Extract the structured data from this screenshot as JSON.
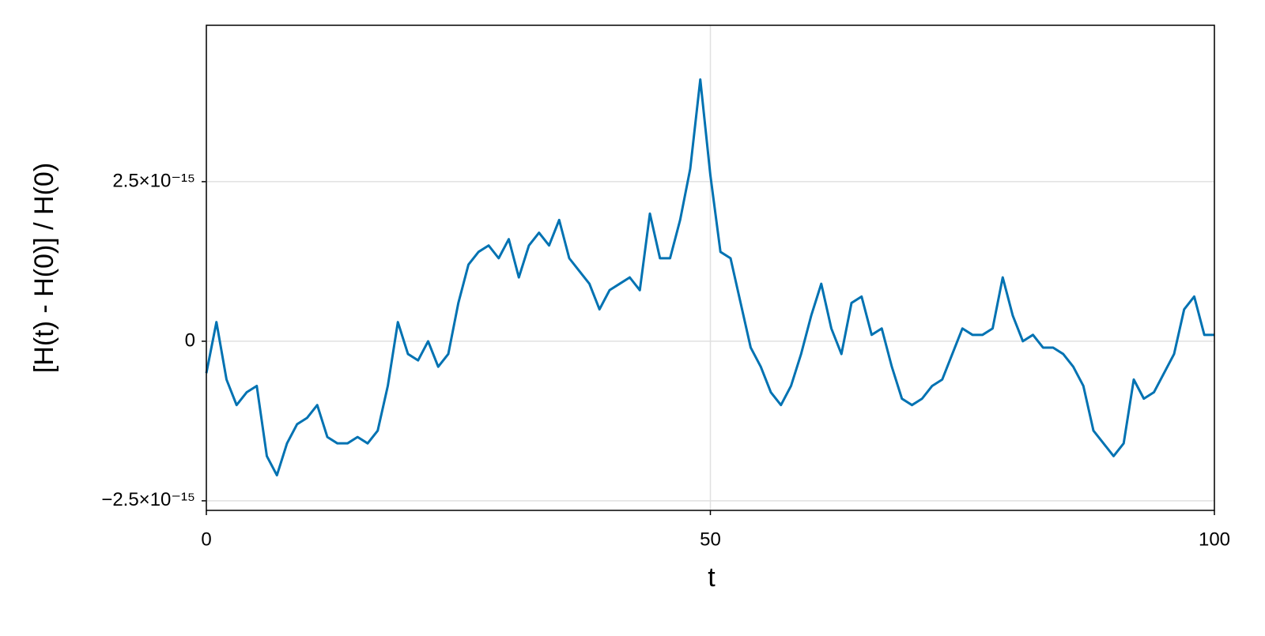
{
  "chart_data": {
    "type": "line",
    "x_label": "t",
    "y_label": "[H(t) - H(0)] / H(0)",
    "xlim": [
      0,
      100
    ],
    "xticks": [
      0,
      50,
      100
    ],
    "ylim": [
      -2.65e-15,
      4.95e-15
    ],
    "yticks": [
      {
        "value": -2.5e-15,
        "label": "−2.5×10⁻¹⁵"
      },
      0,
      {
        "value": 2.5e-15,
        "label": "2.5×10⁻¹⁵"
      }
    ],
    "grid": true,
    "x": [
      0,
      1,
      2,
      3,
      4,
      5,
      6,
      7,
      8,
      9,
      10,
      11,
      12,
      13,
      14,
      15,
      16,
      17,
      18,
      19,
      20,
      21,
      22,
      23,
      24,
      25,
      26,
      27,
      28,
      29,
      30,
      31,
      32,
      33,
      34,
      35,
      36,
      37,
      38,
      39,
      40,
      41,
      42,
      43,
      44,
      45,
      46,
      47,
      48,
      49,
      50,
      51,
      52,
      53,
      54,
      55,
      56,
      57,
      58,
      59,
      60,
      61,
      62,
      63,
      64,
      65,
      66,
      67,
      68,
      69,
      70,
      71,
      72,
      73,
      74,
      75,
      76,
      77,
      78,
      79,
      80,
      81,
      82,
      83,
      84,
      85,
      86,
      87,
      88,
      89,
      90,
      91,
      92,
      93,
      94,
      95,
      96,
      97,
      98,
      99,
      100
    ],
    "series": [
      {
        "color": "#0072b2",
        "values": [
          -5e-16,
          3e-16,
          -6e-16,
          -1e-15,
          -8e-16,
          -7e-16,
          -1.8e-15,
          -2.1e-15,
          -1.6e-15,
          -1.3e-15,
          -1.2e-15,
          -1e-15,
          -1.5e-15,
          -1.6e-15,
          -1.6e-15,
          -1.5e-15,
          -1.6e-15,
          -1.4e-15,
          -7e-16,
          3e-16,
          -2e-16,
          -3e-16,
          0.0,
          -4e-16,
          -2e-16,
          6e-16,
          1.2e-15,
          1.4e-15,
          1.5e-15,
          1.3e-15,
          1.6e-15,
          1e-15,
          1.5e-15,
          1.7e-15,
          1.5e-15,
          1.9e-15,
          1.3e-15,
          1.1e-15,
          9e-16,
          5e-16,
          8e-16,
          9e-16,
          1e-15,
          8e-16,
          2e-15,
          1.3e-15,
          1.3e-15,
          1.9e-15,
          2.7e-15,
          4.1e-15,
          2.6e-15,
          1.4e-15,
          1.3e-15,
          6e-16,
          -1e-16,
          -4e-16,
          -8e-16,
          -1e-15,
          -7e-16,
          -2e-16,
          4e-16,
          9e-16,
          2e-16,
          -2e-16,
          6e-16,
          7e-16,
          1e-16,
          2e-16,
          -4e-16,
          -9e-16,
          -1e-15,
          -9e-16,
          -7e-16,
          -6e-16,
          -2e-16,
          2e-16,
          1e-16,
          1e-16,
          2e-16,
          1e-15,
          4e-16,
          0.0,
          1e-16,
          -1e-16,
          -1e-16,
          -2e-16,
          -4e-16,
          -7e-16,
          -1.4e-15,
          -1.6e-15,
          -1.8e-15,
          -1.6e-15,
          -6e-16,
          -9e-16,
          -8e-16,
          -5e-16,
          -2e-16,
          5e-16,
          7e-16,
          1e-16,
          1e-16
        ]
      }
    ]
  }
}
